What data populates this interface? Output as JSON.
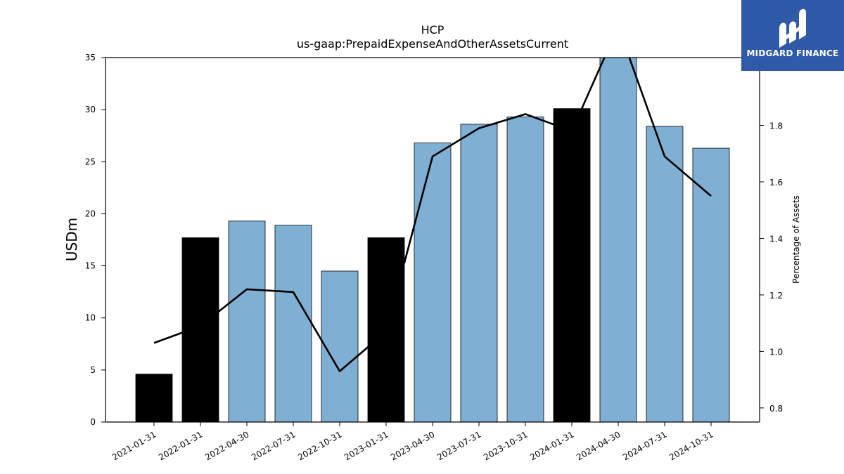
{
  "brand": {
    "name": "MIDGARD FINANCE",
    "color": "#2f5aa8"
  },
  "chart_data": {
    "type": "bar",
    "title": "HCP",
    "subtitle": "us-gaap:PrepaidExpenseAndOtherAssetsCurrent",
    "ylabel": "USDm",
    "ylabel_right": "Percentage of Assets",
    "categories": [
      "2021-01-31",
      "2022-01-31",
      "2022-04-30",
      "2022-07-31",
      "2022-10-31",
      "2023-01-31",
      "2023-04-30",
      "2023-07-31",
      "2023-10-31",
      "2024-01-31",
      "2024-04-30",
      "2024-07-31",
      "2024-10-31"
    ],
    "series": [
      {
        "type": "bar",
        "axis": "left",
        "values": [
          4.6,
          17.7,
          19.3,
          18.9,
          14.5,
          17.7,
          26.8,
          28.6,
          29.3,
          30.1,
          35.5,
          28.4,
          26.3
        ],
        "highlight": [
          true,
          true,
          false,
          false,
          false,
          true,
          false,
          false,
          false,
          true,
          false,
          false,
          false
        ]
      },
      {
        "type": "line",
        "axis": "right",
        "values": [
          1.03,
          1.09,
          1.22,
          1.21,
          0.93,
          1.07,
          1.69,
          1.79,
          1.84,
          1.78,
          2.15,
          1.69,
          1.55
        ]
      }
    ],
    "ylim": [
      0,
      35
    ],
    "yticks": [
      0,
      5,
      10,
      15,
      20,
      25,
      30,
      35
    ],
    "ylim_right": [
      0.75,
      2.04
    ],
    "yticks_right": [
      0.8,
      1.0,
      1.2,
      1.4,
      1.6,
      1.8
    ],
    "colors": {
      "bar": "#7fb0d4",
      "highlight": "#000000",
      "line": "#000000"
    },
    "grid": false,
    "legend": "none"
  }
}
